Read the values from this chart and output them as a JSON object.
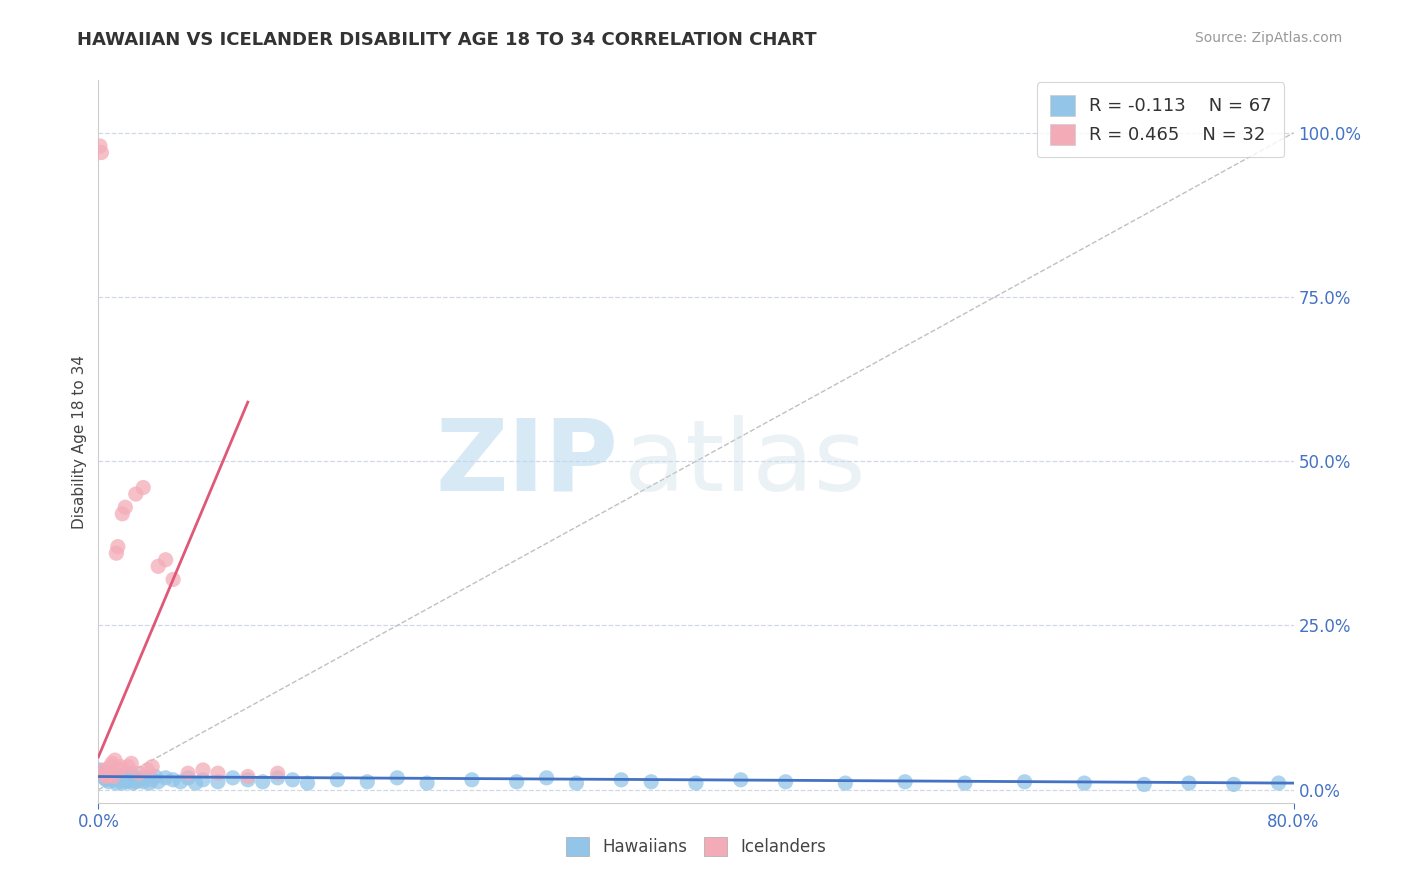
{
  "title": "HAWAIIAN VS ICELANDER DISABILITY AGE 18 TO 34 CORRELATION CHART",
  "source": "Source: ZipAtlas.com",
  "ylabel": "Disability Age 18 to 34",
  "xlim": [
    0.0,
    0.8
  ],
  "ylim": [
    -0.02,
    1.08
  ],
  "plot_ylim": [
    0.0,
    1.0
  ],
  "ytick_labels": [
    "0.0%",
    "25.0%",
    "50.0%",
    "75.0%",
    "100.0%"
  ],
  "ytick_vals": [
    0.0,
    0.25,
    0.5,
    0.75,
    1.0
  ],
  "xtick_labels": [
    "0.0%",
    "80.0%"
  ],
  "xtick_vals": [
    0.0,
    0.8
  ],
  "legend_r1": "R = -0.113",
  "legend_n1": "N = 67",
  "legend_r2": "R = 0.465",
  "legend_n2": "N = 32",
  "hawaiian_color": "#92c5e8",
  "icelander_color": "#f4abb8",
  "trend_hawaiian_color": "#4472c4",
  "trend_icelander_color": "#e05878",
  "diagonal_color": "#c0c0c0",
  "background_color": "#ffffff",
  "hawaiians_x": [
    0.001,
    0.002,
    0.003,
    0.004,
    0.005,
    0.006,
    0.007,
    0.008,
    0.009,
    0.01,
    0.011,
    0.012,
    0.013,
    0.014,
    0.015,
    0.016,
    0.017,
    0.018,
    0.019,
    0.02,
    0.021,
    0.022,
    0.023,
    0.025,
    0.026,
    0.028,
    0.03,
    0.032,
    0.034,
    0.036,
    0.038,
    0.04,
    0.045,
    0.05,
    0.055,
    0.06,
    0.065,
    0.07,
    0.08,
    0.09,
    0.1,
    0.11,
    0.12,
    0.13,
    0.14,
    0.16,
    0.18,
    0.2,
    0.22,
    0.25,
    0.28,
    0.3,
    0.32,
    0.35,
    0.37,
    0.4,
    0.43,
    0.46,
    0.5,
    0.54,
    0.58,
    0.62,
    0.66,
    0.7,
    0.73,
    0.76,
    0.79
  ],
  "hawaiians_y": [
    0.03,
    0.025,
    0.022,
    0.018,
    0.015,
    0.02,
    0.012,
    0.018,
    0.025,
    0.015,
    0.02,
    0.01,
    0.018,
    0.022,
    0.015,
    0.01,
    0.018,
    0.02,
    0.012,
    0.015,
    0.018,
    0.025,
    0.01,
    0.012,
    0.018,
    0.015,
    0.012,
    0.018,
    0.01,
    0.015,
    0.02,
    0.012,
    0.018,
    0.015,
    0.012,
    0.018,
    0.01,
    0.015,
    0.012,
    0.018,
    0.015,
    0.012,
    0.018,
    0.015,
    0.01,
    0.015,
    0.012,
    0.018,
    0.01,
    0.015,
    0.012,
    0.018,
    0.01,
    0.015,
    0.012,
    0.01,
    0.015,
    0.012,
    0.01,
    0.012,
    0.01,
    0.012,
    0.01,
    0.008,
    0.01,
    0.008,
    0.01
  ],
  "icelanders_x": [
    0.001,
    0.002,
    0.003,
    0.004,
    0.005,
    0.006,
    0.007,
    0.008,
    0.009,
    0.01,
    0.011,
    0.012,
    0.013,
    0.014,
    0.015,
    0.016,
    0.018,
    0.02,
    0.022,
    0.025,
    0.027,
    0.03,
    0.033,
    0.036,
    0.04,
    0.045,
    0.05,
    0.06,
    0.07,
    0.08,
    0.1,
    0.12
  ],
  "icelanders_y": [
    0.98,
    0.97,
    0.025,
    0.03,
    0.02,
    0.025,
    0.022,
    0.035,
    0.04,
    0.02,
    0.045,
    0.36,
    0.37,
    0.03,
    0.035,
    0.42,
    0.43,
    0.035,
    0.04,
    0.45,
    0.025,
    0.46,
    0.03,
    0.035,
    0.34,
    0.35,
    0.32,
    0.025,
    0.03,
    0.025,
    0.02,
    0.025
  ],
  "trend_h_x0": 0.0,
  "trend_h_x1": 0.8,
  "trend_h_y0": 0.02,
  "trend_h_y1": 0.01,
  "trend_i_x0": 0.0,
  "trend_i_x1": 0.1,
  "trend_i_y0": 0.05,
  "trend_i_y1": 0.59
}
